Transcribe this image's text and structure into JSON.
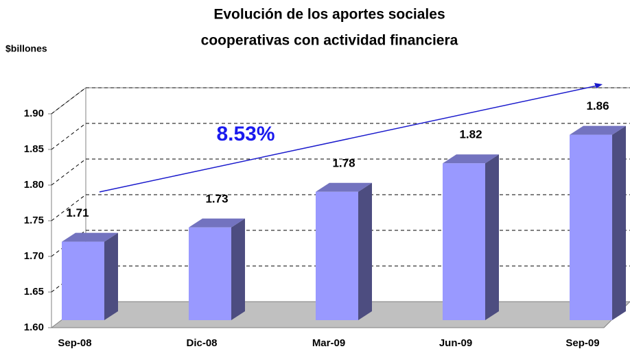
{
  "chart_data": {
    "type": "bar3d",
    "title": [
      "Evolución de los aportes sociales",
      "cooperativas con actividad financiera"
    ],
    "y_label": "$billones",
    "annotation": "8.53%",
    "categories": [
      "Sep-08",
      "Dic-08",
      "Mar-09",
      "Jun-09",
      "Sep-09"
    ],
    "values": [
      1.71,
      1.73,
      1.78,
      1.82,
      1.86
    ],
    "color": "#9999ff",
    "ylim": [
      1.6,
      1.9
    ],
    "yticks": [
      {
        "value": 1.6,
        "label": "1.60"
      },
      1.65,
      {
        "value": 1.7,
        "label": "1.70"
      },
      1.75,
      {
        "value": 1.8,
        "label": "1.80"
      },
      1.85,
      {
        "value": 1.9,
        "label": "1.90"
      }
    ],
    "grid": true
  }
}
